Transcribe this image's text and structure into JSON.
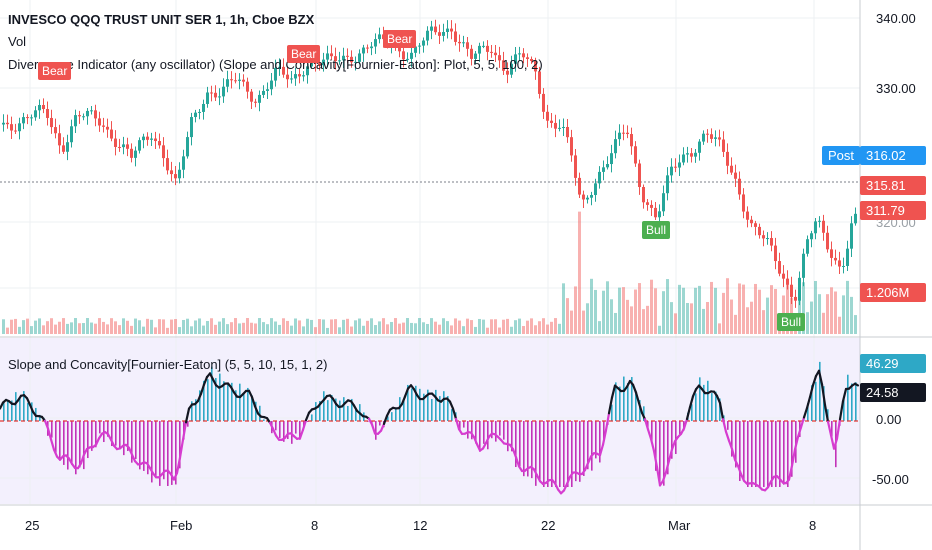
{
  "header": {
    "symbol_line": "INVESCO QQQ TRUST UNIT SER 1, 1h, Cboe BZX",
    "vol_label": "Vol",
    "indicator_line": "Divergence Indicator (any oscillator) (Slope and Concavity[Fournier-Eaton]: Plot, 5, 5, 100, 2)",
    "oscillator_line": "Slope and Concavity[Fournier-Eaton] (5, 5, 10, 15, 1, 2)"
  },
  "price_axis": {
    "ticks": [
      "340.00",
      "330.00",
      "320.00"
    ],
    "tags": {
      "post_label": "Post",
      "post_value": "316.02",
      "last_value": "315.81",
      "level_value": "311.79",
      "volume_value": "1.206M"
    }
  },
  "osc_axis": {
    "ticks": [
      "0.00",
      "-50.00"
    ],
    "tags": {
      "hist_value": "46.29",
      "line_value": "24.58"
    }
  },
  "time_axis": [
    "25",
    "Feb",
    "8",
    "12",
    "22",
    "Mar",
    "8"
  ],
  "signals": [
    {
      "text": "Bear",
      "type": "bear"
    },
    {
      "text": "Bear",
      "type": "bear"
    },
    {
      "text": "Bear",
      "type": "bear"
    },
    {
      "text": "Bull",
      "type": "bull"
    },
    {
      "text": "Bull",
      "type": "bull"
    }
  ],
  "colors": {
    "up": "#26a69a",
    "down": "#ef5350",
    "hist_pos": "#2ea8c6",
    "hist_neg": "#c233b8",
    "line_pos": "#131722",
    "line_neg": "#d63dd0",
    "osc_bg": "#f3f0fd",
    "post_tag": "#2196f3"
  },
  "chart_data": {
    "type": "candlestick",
    "series": [
      {
        "name": "QQQ",
        "x": [
          "25",
          "Feb",
          "8",
          "12",
          "22",
          "Mar",
          "8"
        ],
        "close": [
          325.5,
          319.0,
          333.0,
          337.0,
          320.5,
          327.5,
          317.0
        ]
      },
      {
        "name": "Slope and Concavity",
        "x": [
          "25",
          "Feb",
          "8",
          "12",
          "22",
          "Mar",
          "8"
        ],
        "values": [
          8,
          20,
          14,
          12,
          -45,
          25,
          24.58
        ]
      }
    ],
    "last_price": 315.81,
    "post_price": 316.02,
    "oscillator_range": [
      -60,
      55
    ]
  }
}
